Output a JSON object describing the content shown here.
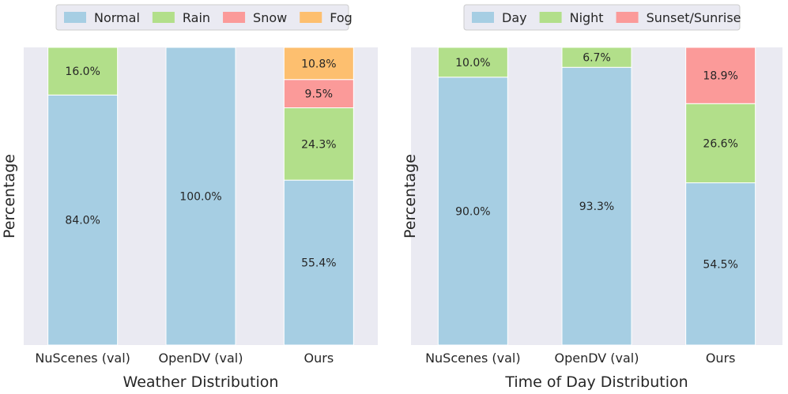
{
  "charts": [
    {
      "type": "bar",
      "stacked": true,
      "title": "",
      "xlabel": "Weather Distribution",
      "ylabel": "Percentage",
      "ylim": [
        0,
        100
      ],
      "grid": false,
      "legend_position": "top-center",
      "categories": [
        "NuScenes (val)",
        "OpenDV (val)",
        "Ours"
      ],
      "series": [
        {
          "name": "Normal",
          "color": "#a6cee3",
          "values": [
            84.0,
            100.0,
            55.4
          ],
          "labels": [
            "84.0%",
            "100.0%",
            "55.4%"
          ]
        },
        {
          "name": "Rain",
          "color": "#b2df8a",
          "values": [
            16.0,
            0,
            24.3
          ],
          "labels": [
            "16.0%",
            "",
            "24.3%"
          ]
        },
        {
          "name": "Snow",
          "color": "#fb9a99",
          "values": [
            0,
            0,
            9.5
          ],
          "labels": [
            "",
            "",
            "9.5%"
          ]
        },
        {
          "name": "Fog",
          "color": "#fdbf6f",
          "values": [
            0,
            0,
            10.8
          ],
          "labels": [
            "",
            "",
            "10.8%"
          ]
        }
      ]
    },
    {
      "type": "bar",
      "stacked": true,
      "title": "",
      "xlabel": "Time of Day Distribution",
      "ylabel": "Percentage",
      "ylim": [
        0,
        100
      ],
      "grid": false,
      "legend_position": "top-center",
      "categories": [
        "NuScenes (val)",
        "OpenDV (val)",
        "Ours"
      ],
      "series": [
        {
          "name": "Day",
          "color": "#a6cee3",
          "values": [
            90.0,
            93.3,
            54.5
          ],
          "labels": [
            "90.0%",
            "93.3%",
            "54.5%"
          ]
        },
        {
          "name": "Night",
          "color": "#b2df8a",
          "values": [
            10.0,
            6.7,
            26.6
          ],
          "labels": [
            "10.0%",
            "6.7%",
            "26.6%"
          ]
        },
        {
          "name": "Sunset/Sunrise",
          "color": "#fb9a99",
          "values": [
            0,
            0,
            18.9
          ],
          "labels": [
            "",
            "",
            "18.9%"
          ]
        }
      ]
    }
  ],
  "chart_data": [
    {
      "type": "bar",
      "xlabel": "Weather Distribution",
      "ylabel": "Percentage",
      "ylim": [
        0,
        100
      ],
      "categories": [
        "NuScenes (val)",
        "OpenDV (val)",
        "Ours"
      ],
      "series": [
        {
          "name": "Normal",
          "values": [
            84.0,
            100.0,
            55.4
          ]
        },
        {
          "name": "Rain",
          "values": [
            16.0,
            0,
            24.3
          ]
        },
        {
          "name": "Snow",
          "values": [
            0,
            0,
            9.5
          ]
        },
        {
          "name": "Fog",
          "values": [
            0,
            0,
            10.8
          ]
        }
      ]
    },
    {
      "type": "bar",
      "xlabel": "Time of Day Distribution",
      "ylabel": "Percentage",
      "ylim": [
        0,
        100
      ],
      "categories": [
        "NuScenes (val)",
        "OpenDV (val)",
        "Ours"
      ],
      "series": [
        {
          "name": "Day",
          "values": [
            90.0,
            93.3,
            54.5
          ]
        },
        {
          "name": "Night",
          "values": [
            10.0,
            6.7,
            26.6
          ]
        },
        {
          "name": "Sunset/Sunrise",
          "values": [
            0,
            0,
            18.9
          ]
        }
      ]
    }
  ]
}
